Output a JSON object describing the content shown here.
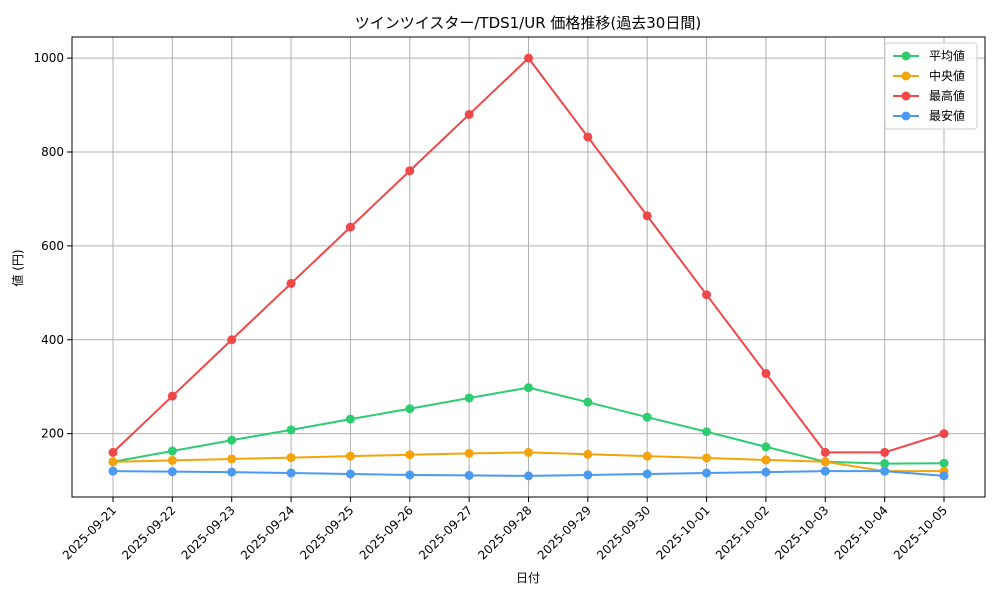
{
  "chart_data": {
    "type": "line",
    "title": "ツインツイスター/TDS1/UR 価格推移(過去30日間)",
    "xlabel": "日付",
    "ylabel": "値 (円)",
    "categories": [
      "2025-09-21",
      "2025-09-22",
      "2025-09-23",
      "2025-09-24",
      "2025-09-25",
      "2025-09-26",
      "2025-09-27",
      "2025-09-28",
      "2025-09-29",
      "2025-09-30",
      "2025-10-01",
      "2025-10-02",
      "2025-10-03",
      "2025-10-04",
      "2025-10-05"
    ],
    "ylim": [
      65,
      1045
    ],
    "yticks": [
      200,
      400,
      600,
      800,
      1000
    ],
    "grid": true,
    "legend_position": "top-right",
    "series": [
      {
        "name": "平均値",
        "color": "#2ecc71",
        "values": [
          140,
          163,
          186,
          208,
          231,
          253,
          276,
          298,
          267,
          235,
          204,
          172,
          140,
          136,
          137
        ]
      },
      {
        "name": "中央値",
        "color": "#f5a30a",
        "values": [
          140,
          143,
          146,
          149,
          152,
          155,
          158,
          160,
          156,
          152,
          148,
          144,
          140,
          120,
          120
        ]
      },
      {
        "name": "最高値",
        "color": "#f04848",
        "values": [
          160,
          280,
          400,
          520,
          640,
          760,
          880,
          1000,
          832,
          664,
          496,
          328,
          160,
          160,
          200
        ]
      },
      {
        "name": "最安値",
        "color": "#4a9af0",
        "values": [
          120,
          119,
          118,
          116,
          114,
          112,
          111,
          110,
          112,
          114,
          116,
          118,
          120,
          120,
          110
        ]
      }
    ]
  }
}
